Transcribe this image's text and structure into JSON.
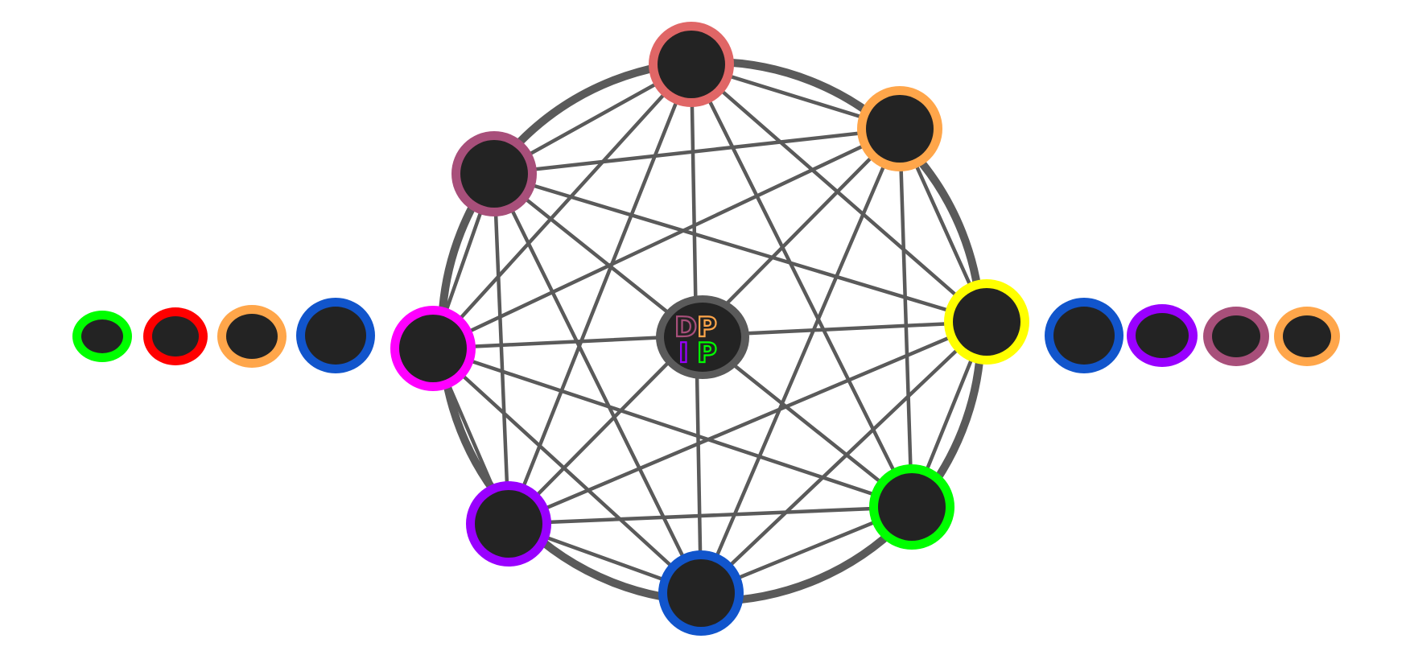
{
  "center_logo": {
    "letters": [
      {
        "char": "D",
        "color": "#a84f7a"
      },
      {
        "char": "P",
        "color": "#ffa64a"
      },
      {
        "char": "I",
        "color": "#9900ff"
      },
      {
        "char": "P",
        "color": "#00ff00"
      }
    ],
    "ring_color": "#5a5a5a"
  },
  "ring_nodes": [
    {
      "name": "ring-node-top",
      "color": "#e06666"
    },
    {
      "name": "ring-node-upper-right",
      "color": "#ffa64a"
    },
    {
      "name": "ring-node-right",
      "color": "#ffff00"
    },
    {
      "name": "ring-node-lower-right",
      "color": "#00ff00"
    },
    {
      "name": "ring-node-bottom",
      "color": "#1155cc"
    },
    {
      "name": "ring-node-lower-left",
      "color": "#9900ff"
    },
    {
      "name": "ring-node-left",
      "color": "#ff00ff"
    },
    {
      "name": "ring-node-upper-left",
      "color": "#a84f7a"
    }
  ],
  "left_queue": [
    {
      "name": "queue-left-node-green",
      "color": "#00ff00"
    },
    {
      "name": "queue-left-node-red",
      "color": "#ff0000"
    },
    {
      "name": "queue-left-node-orange",
      "color": "#ffa64a"
    },
    {
      "name": "queue-left-node-blue",
      "color": "#1155cc"
    }
  ],
  "right_queue": [
    {
      "name": "queue-right-node-blue",
      "color": "#1155cc"
    },
    {
      "name": "queue-right-node-purple",
      "color": "#9900ff"
    },
    {
      "name": "queue-right-node-mauve",
      "color": "#a84f7a"
    },
    {
      "name": "queue-right-node-orange",
      "color": "#ffa64a"
    }
  ],
  "edge_color": "#5a5a5a",
  "core_color": "#232323"
}
